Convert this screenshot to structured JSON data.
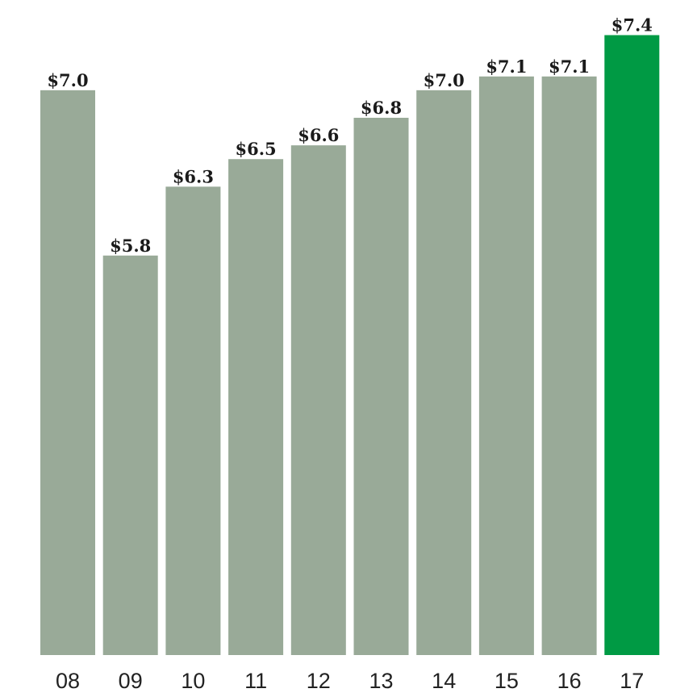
{
  "chart_data": {
    "type": "bar",
    "categories": [
      "08",
      "09",
      "10",
      "11",
      "12",
      "13",
      "14",
      "15",
      "16",
      "17"
    ],
    "values": [
      7.0,
      5.8,
      6.3,
      6.5,
      6.6,
      6.8,
      7.0,
      7.1,
      7.1,
      7.4
    ],
    "value_labels": [
      "$7.0",
      "$5.8",
      "$6.3",
      "$6.5",
      "$6.6",
      "$6.8",
      "$7.0",
      "$7.1",
      "$7.1",
      "$7.4"
    ],
    "colors": [
      "#99aa98",
      "#99aa98",
      "#99aa98",
      "#99aa98",
      "#99aa98",
      "#99aa98",
      "#99aa98",
      "#99aa98",
      "#99aa98",
      "#009a44"
    ],
    "ylim": [
      2.9,
      7.45
    ]
  }
}
